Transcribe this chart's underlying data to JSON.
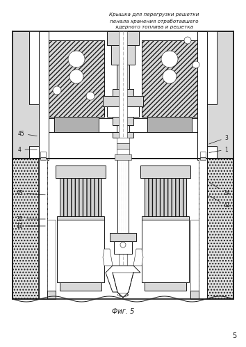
{
  "title_line1": "Крышка для перегрузки решетки",
  "title_line2": "пенала хранения отработавшего",
  "title_line3": "ядерного топлива и решетка",
  "fig_label": "Фиг. 5",
  "page_number": "5",
  "bg_color": "#ffffff",
  "line_color": "#1a1a1a",
  "gray_light": "#d8d8d8",
  "gray_mid": "#aaaaaa",
  "gray_dark": "#666666",
  "gray_hatch": "#888888"
}
